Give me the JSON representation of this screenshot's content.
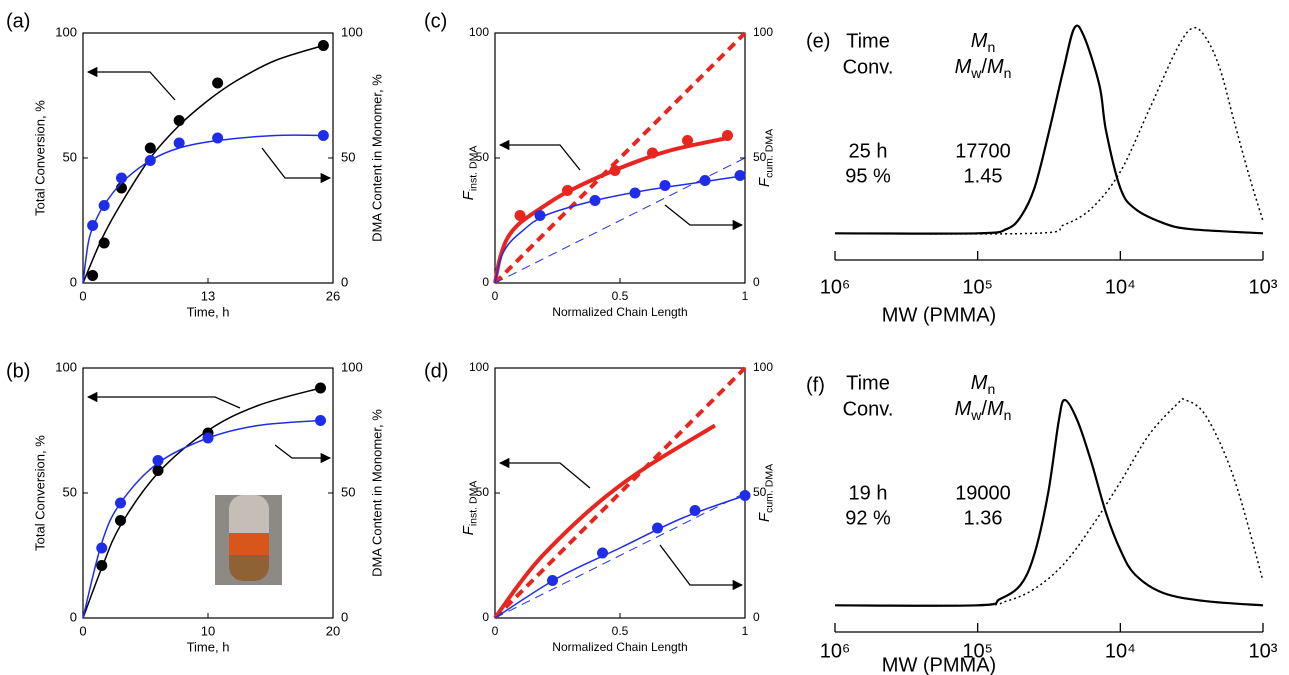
{
  "chart_data": [
    {
      "type": "scatter",
      "label": "(a)",
      "xlabel": "Time, h",
      "ylabel": "Total Conversion, %",
      "y2label": "DMA Content in Monomer, %",
      "xlim": [
        0,
        26
      ],
      "xticks": [
        0,
        13,
        26
      ],
      "ylim": [
        0,
        100
      ],
      "yticks": [
        0,
        50,
        100
      ],
      "y2lim": [
        0,
        100
      ],
      "y2ticks": [
        0,
        50,
        100
      ],
      "series": [
        {
          "color": "#000000",
          "mode": "markers",
          "x": [
            1,
            2.2,
            4,
            7,
            10,
            14,
            25
          ],
          "values": [
            3,
            16,
            38,
            54,
            65,
            80,
            95
          ]
        },
        {
          "color": "#000000",
          "mode": "line",
          "width": 1.5,
          "x": [
            0,
            2,
            4,
            7,
            10,
            13,
            16,
            20,
            25
          ],
          "values": [
            0,
            18,
            32,
            50,
            63,
            73,
            81,
            89,
            95
          ]
        },
        {
          "color": "#1f2ee6",
          "mode": "markers",
          "axis": "y2",
          "x": [
            1,
            2.2,
            4,
            7,
            10,
            14,
            25
          ],
          "values": [
            23,
            31,
            42,
            49,
            56,
            58,
            59
          ]
        },
        {
          "color": "#1f2ee6",
          "mode": "line",
          "width": 1.5,
          "axis": "y2",
          "x": [
            0,
            0.5,
            1,
            2,
            4,
            7,
            10,
            14,
            20,
            25
          ],
          "values": [
            0,
            15,
            22,
            30,
            40,
            49,
            54,
            57,
            59,
            59
          ]
        }
      ]
    },
    {
      "type": "scatter",
      "label": "(b)",
      "xlabel": "Time, h",
      "ylabel": "Total Conversion, %",
      "y2label": "DMA Content in Monomer, %",
      "xlim": [
        0,
        20
      ],
      "xticks": [
        0,
        10,
        20
      ],
      "ylim": [
        0,
        100
      ],
      "yticks": [
        0,
        50,
        100
      ],
      "y2lim": [
        0,
        100
      ],
      "y2ticks": [
        0,
        50,
        100
      ],
      "series": [
        {
          "color": "#000000",
          "mode": "markers",
          "x": [
            1.5,
            3,
            6,
            10,
            19
          ],
          "values": [
            21,
            39,
            59,
            74,
            92
          ]
        },
        {
          "color": "#000000",
          "mode": "line",
          "width": 1.5,
          "x": [
            0,
            1.5,
            3,
            6,
            10,
            14,
            19
          ],
          "values": [
            0,
            20,
            37,
            58,
            75,
            85,
            92
          ]
        },
        {
          "color": "#1f2ee6",
          "mode": "markers",
          "axis": "y2",
          "x": [
            1.5,
            3,
            6,
            10,
            19
          ],
          "values": [
            28,
            46,
            63,
            72,
            79
          ]
        },
        {
          "color": "#1f2ee6",
          "mode": "line",
          "width": 1.5,
          "axis": "y2",
          "x": [
            0,
            1.5,
            3,
            6,
            10,
            14,
            19
          ],
          "values": [
            0,
            30,
            46,
            62,
            72,
            77,
            79
          ]
        }
      ]
    },
    {
      "type": "line",
      "label": "(c)",
      "xlabel": "Normalized Chain Length",
      "ylabel": {
        "symbol": "F",
        "subscript": "inst. DMA"
      },
      "y2label": {
        "symbol": "F",
        "subscript": "cum. DMA"
      },
      "xlim": [
        0,
        1
      ],
      "xticks": [
        0,
        0.5,
        1
      ],
      "ylim": [
        0,
        100
      ],
      "yticks": [
        0,
        50,
        100
      ],
      "y2lim": [
        0,
        100
      ],
      "y2ticks": [
        0,
        50,
        100
      ],
      "series": [
        {
          "color": "#e8251f",
          "mode": "markers",
          "x": [
            0.1,
            0.29,
            0.48,
            0.63,
            0.77,
            0.93
          ],
          "values": [
            27,
            37,
            45,
            52,
            57,
            59
          ]
        },
        {
          "color": "#e8251f",
          "mode": "line",
          "width": 4,
          "x": [
            0,
            0.02,
            0.05,
            0.1,
            0.2,
            0.3,
            0.5,
            0.7,
            0.93
          ],
          "values": [
            0,
            10,
            18,
            24,
            31,
            37,
            46,
            53,
            58
          ]
        },
        {
          "color": "#e8251f",
          "mode": "line",
          "width": 4,
          "dash": "dash",
          "x": [
            0,
            1
          ],
          "values": [
            0,
            100
          ]
        },
        {
          "color": "#1f2ee6",
          "mode": "markers",
          "axis": "y2",
          "x": [
            0.18,
            0.4,
            0.56,
            0.68,
            0.84,
            0.98
          ],
          "values": [
            27,
            33,
            36,
            39,
            41,
            43
          ]
        },
        {
          "color": "#1f2ee6",
          "mode": "line",
          "width": 1.5,
          "axis": "y2",
          "x": [
            0,
            0.02,
            0.05,
            0.1,
            0.2,
            0.4,
            0.6,
            0.8,
            1
          ],
          "values": [
            0,
            9,
            15,
            20,
            27,
            33,
            37,
            40,
            43
          ]
        },
        {
          "color": "#1f2ee6",
          "mode": "line",
          "width": 1,
          "dash": "dash",
          "axis": "y2",
          "x": [
            0,
            1
          ],
          "values": [
            0,
            50
          ]
        }
      ]
    },
    {
      "type": "line",
      "label": "(d)",
      "xlabel": "Normalized Chain Length",
      "ylabel": {
        "symbol": "F",
        "subscript": "inst. DMA"
      },
      "y2label": {
        "symbol": "F",
        "subscript": "cum. DMA"
      },
      "xlim": [
        0,
        1
      ],
      "xticks": [
        0,
        0.5,
        1
      ],
      "ylim": [
        0,
        100
      ],
      "yticks": [
        0,
        50,
        100
      ],
      "y2lim": [
        0,
        100
      ],
      "y2ticks": [
        0,
        50,
        100
      ],
      "series": [
        {
          "color": "#e8251f",
          "mode": "line",
          "width": 4,
          "x": [
            0,
            0.1,
            0.2,
            0.4,
            0.6,
            0.88
          ],
          "values": [
            0,
            14,
            26,
            45,
            60,
            77
          ]
        },
        {
          "color": "#e8251f",
          "mode": "line",
          "width": 4,
          "dash": "dash",
          "x": [
            0,
            1
          ],
          "values": [
            0,
            100
          ]
        },
        {
          "color": "#1f2ee6",
          "mode": "markers",
          "axis": "y2",
          "x": [
            0.23,
            0.43,
            0.65,
            0.8,
            1
          ],
          "values": [
            15,
            26,
            36,
            43,
            49
          ]
        },
        {
          "color": "#1f2ee6",
          "mode": "line",
          "width": 1.5,
          "axis": "y2",
          "x": [
            0,
            0.25,
            0.5,
            0.75,
            1
          ],
          "values": [
            0,
            16,
            28,
            40,
            49
          ]
        },
        {
          "color": "#1f2ee6",
          "mode": "line",
          "width": 1,
          "dash": "dash",
          "axis": "y2",
          "x": [
            0,
            1
          ],
          "values": [
            0,
            50
          ]
        }
      ]
    },
    {
      "type": "gpc",
      "label": "(e)",
      "xlabel": "MW (PMMA)",
      "xscale": "log",
      "xlim": [
        1000000,
        1000
      ],
      "xticks": [
        {
          "value": 1000000,
          "label": "10⁶"
        },
        {
          "value": 100000,
          "label": "10⁵"
        },
        {
          "value": 10000,
          "label": "10⁴"
        },
        {
          "value": 1000,
          "label": "10³"
        }
      ],
      "ylim": [
        -0.13,
        1
      ],
      "annotations": {
        "time_label": "Time",
        "conversion_label": "Conv.",
        "mn_label": {
          "symbol": "M",
          "subscript": "n"
        },
        "dispersity_label": {
          "numerator": {
            "symbol": "M",
            "subscript": "w"
          },
          "slash": "/",
          "denominator": {
            "symbol": "M",
            "subscript": "n"
          }
        },
        "time": "25 h",
        "conversion": "95 %",
        "mn": "17700",
        "dispersity": "1.45"
      },
      "series": [
        {
          "color": "#000000",
          "mode": "line",
          "width": 2.2,
          "x": [
            1000000,
            100000,
            63000,
            50000,
            40000,
            32000,
            25000,
            21000,
            18000,
            14000,
            12600,
            10000,
            7900,
            5000,
            3200,
            1000
          ],
          "values": [
            0,
            0,
            0.02,
            0.08,
            0.22,
            0.48,
            0.8,
            1.0,
            0.96,
            0.72,
            0.5,
            0.22,
            0.12,
            0.05,
            0.02,
            0
          ]
        },
        {
          "color": "#000000",
          "mode": "line",
          "width": 1.5,
          "dash": "dot",
          "x": [
            1000000,
            40000,
            25000,
            16000,
            10000,
            6300,
            4000,
            3100,
            2500,
            2000,
            1600,
            1250,
            1000
          ],
          "values": [
            0,
            0,
            0.04,
            0.12,
            0.3,
            0.6,
            0.9,
            1.0,
            0.95,
            0.8,
            0.55,
            0.28,
            0.06
          ]
        }
      ]
    },
    {
      "type": "gpc",
      "label": "(f)",
      "xlabel": "MW (PMMA)",
      "xscale": "log",
      "xlim": [
        1000000,
        1000
      ],
      "xticks": [
        {
          "value": 1000000,
          "label": "10⁶"
        },
        {
          "value": 100000,
          "label": "10⁵"
        },
        {
          "value": 10000,
          "label": "10⁴"
        },
        {
          "value": 1000,
          "label": "10³"
        }
      ],
      "ylim": [
        -0.13,
        1
      ],
      "annotations": {
        "time_label": "Time",
        "conversion_label": "Conv.",
        "mn_label": {
          "symbol": "M",
          "subscript": "n"
        },
        "dispersity_label": {
          "numerator": {
            "symbol": "M",
            "subscript": "w"
          },
          "slash": "/",
          "denominator": {
            "symbol": "M",
            "subscript": "n"
          }
        },
        "time": "19 h",
        "conversion": "92 %",
        "mn": "19000",
        "dispersity": "1.36"
      },
      "series": [
        {
          "color": "#000000",
          "mode": "line",
          "width": 2.2,
          "x": [
            1000000,
            100000,
            70000,
            50000,
            40000,
            32000,
            27000,
            24500,
            20000,
            16000,
            12600,
            10000,
            7900,
            5000,
            2500,
            1000
          ],
          "values": [
            0,
            0,
            0.03,
            0.1,
            0.25,
            0.55,
            0.9,
            1.0,
            0.9,
            0.7,
            0.45,
            0.27,
            0.15,
            0.06,
            0.02,
            0
          ]
        },
        {
          "color": "#000000",
          "mode": "line",
          "width": 1.5,
          "dash": "dot",
          "x": [
            1000000,
            100000,
            63000,
            40000,
            25000,
            16000,
            10000,
            6300,
            4000,
            3500,
            2500,
            1600,
            1000
          ],
          "values": [
            0,
            0,
            0.02,
            0.08,
            0.2,
            0.38,
            0.6,
            0.83,
            0.98,
            1.0,
            0.92,
            0.62,
            0.12
          ]
        }
      ]
    }
  ]
}
